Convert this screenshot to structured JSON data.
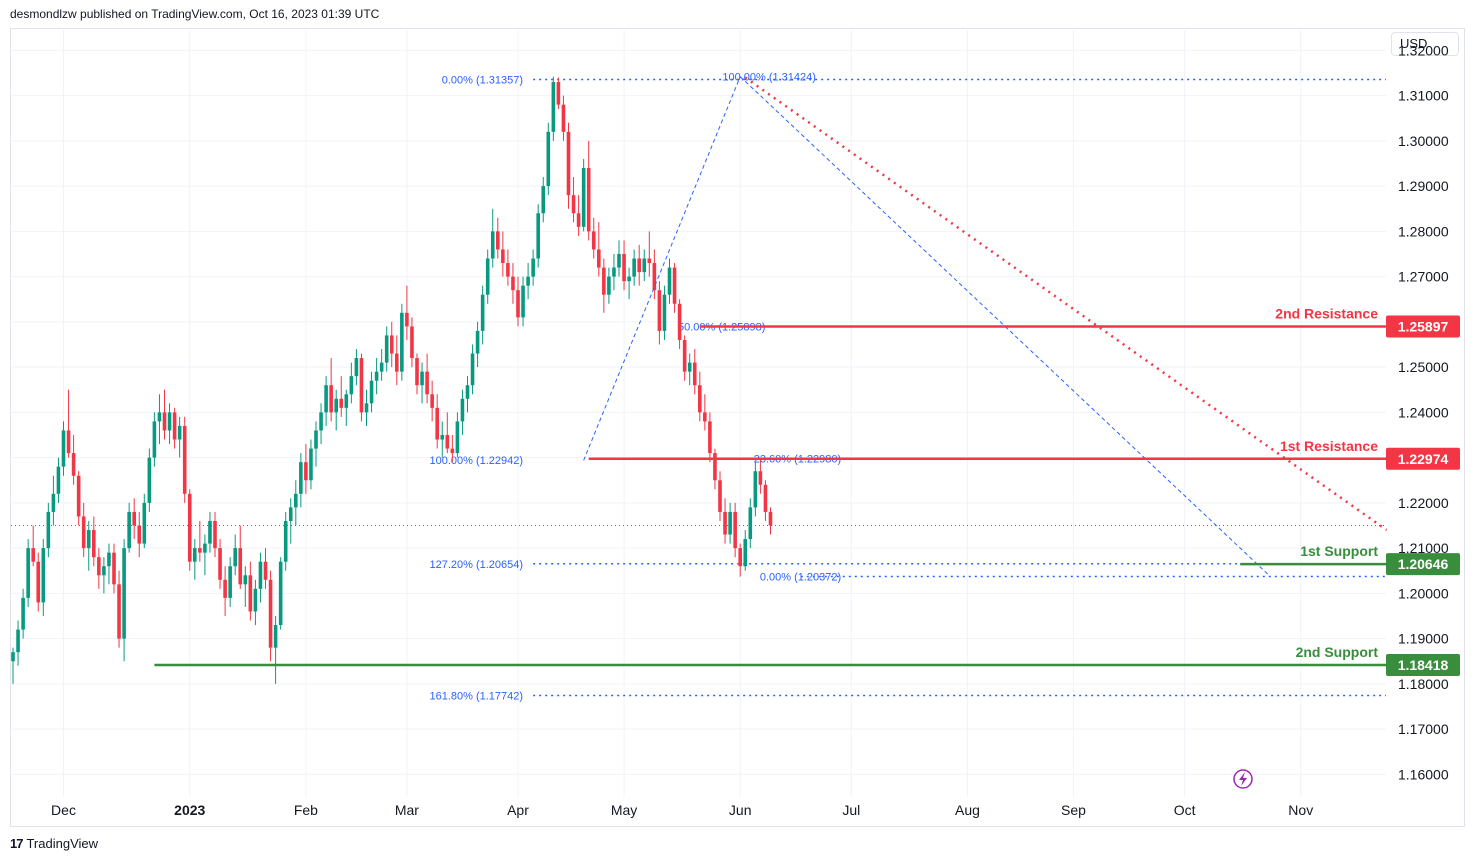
{
  "header": {
    "publisher_line": "desmondlzw published on TradingView.com, Oct 16, 2023 01:39 UTC"
  },
  "footer": {
    "brand": "TradingView",
    "logo_text": "17"
  },
  "axis": {
    "currency": "USD"
  },
  "colors": {
    "up": "#089981",
    "down": "#f23645",
    "fib": "#2962ff",
    "fib_text": "#2962ff",
    "resistance": "#f23645",
    "support": "#388e3c",
    "trend": "#f23645",
    "grid": "#f0f3fa"
  },
  "chart_data": {
    "type": "candlestick",
    "title": "",
    "ylim": [
      1.155,
      1.3245
    ],
    "y_ticks": [
      "1.32000",
      "1.31000",
      "1.30000",
      "1.29000",
      "1.28000",
      "1.27000",
      "1.26000",
      "1.25000",
      "1.24000",
      "1.23000",
      "1.22000",
      "1.21000",
      "1.20000",
      "1.19000",
      "1.18000",
      "1.17000",
      "1.16000"
    ],
    "x_ticks": [
      {
        "label": "Dec",
        "t": 10,
        "bold": false
      },
      {
        "label": "2023",
        "t": 35,
        "bold": true
      },
      {
        "label": "Feb",
        "t": 58,
        "bold": false
      },
      {
        "label": "Mar",
        "t": 78,
        "bold": false
      },
      {
        "label": "Apr",
        "t": 100,
        "bold": false
      },
      {
        "label": "May",
        "t": 121,
        "bold": false
      },
      {
        "label": "Jun",
        "t": 144,
        "bold": false
      },
      {
        "label": "Jul",
        "t": 166,
        "bold": false
      },
      {
        "label": "Aug",
        "t": 189,
        "bold": false
      },
      {
        "label": "Sep",
        "t": 210,
        "bold": false
      },
      {
        "label": "Oct",
        "t": 232,
        "bold": false
      },
      {
        "label": "Nov",
        "t": 255,
        "bold": false
      }
    ],
    "candles": [
      [
        1.185,
        1.188,
        1.18,
        1.187
      ],
      [
        1.187,
        1.194,
        1.184,
        1.192
      ],
      [
        1.192,
        1.201,
        1.19,
        1.199
      ],
      [
        1.199,
        1.212,
        1.197,
        1.21
      ],
      [
        1.21,
        1.215,
        1.206,
        1.207
      ],
      [
        1.207,
        1.209,
        1.196,
        1.198
      ],
      [
        1.198,
        1.212,
        1.195,
        1.21
      ],
      [
        1.21,
        1.22,
        1.208,
        1.218
      ],
      [
        1.218,
        1.226,
        1.215,
        1.222
      ],
      [
        1.222,
        1.23,
        1.22,
        1.228
      ],
      [
        1.228,
        1.238,
        1.226,
        1.236
      ],
      [
        1.236,
        1.245,
        1.23,
        1.231
      ],
      [
        1.231,
        1.235,
        1.224,
        1.226
      ],
      [
        1.226,
        1.227,
        1.215,
        1.217
      ],
      [
        1.217,
        1.22,
        1.208,
        1.21
      ],
      [
        1.21,
        1.216,
        1.205,
        1.214
      ],
      [
        1.214,
        1.217,
        1.206,
        1.208
      ],
      [
        1.208,
        1.21,
        1.201,
        1.204
      ],
      [
        1.204,
        1.208,
        1.2,
        1.206
      ],
      [
        1.206,
        1.211,
        1.202,
        1.209
      ],
      [
        1.209,
        1.211,
        1.2,
        1.202
      ],
      [
        1.202,
        1.205,
        1.188,
        1.19
      ],
      [
        1.19,
        1.212,
        1.185,
        1.21
      ],
      [
        1.21,
        1.22,
        1.209,
        1.218
      ],
      [
        1.218,
        1.221,
        1.212,
        1.215
      ],
      [
        1.215,
        1.218,
        1.208,
        1.211
      ],
      [
        1.211,
        1.222,
        1.21,
        1.22
      ],
      [
        1.22,
        1.232,
        1.218,
        1.23
      ],
      [
        1.23,
        1.24,
        1.228,
        1.238
      ],
      [
        1.238,
        1.244,
        1.233,
        1.24
      ],
      [
        1.24,
        1.245,
        1.234,
        1.236
      ],
      [
        1.236,
        1.242,
        1.233,
        1.24
      ],
      [
        1.24,
        1.241,
        1.232,
        1.234
      ],
      [
        1.234,
        1.239,
        1.23,
        1.237
      ],
      [
        1.237,
        1.239,
        1.22,
        1.222
      ],
      [
        1.222,
        1.223,
        1.205,
        1.207
      ],
      [
        1.207,
        1.212,
        1.203,
        1.21
      ],
      [
        1.21,
        1.216,
        1.207,
        1.209
      ],
      [
        1.209,
        1.213,
        1.204,
        1.211
      ],
      [
        1.211,
        1.218,
        1.209,
        1.216
      ],
      [
        1.216,
        1.218,
        1.208,
        1.21
      ],
      [
        1.21,
        1.212,
        1.201,
        1.203
      ],
      [
        1.203,
        1.206,
        1.195,
        1.199
      ],
      [
        1.199,
        1.208,
        1.197,
        1.206
      ],
      [
        1.206,
        1.213,
        1.204,
        1.21
      ],
      [
        1.21,
        1.215,
        1.201,
        1.202
      ],
      [
        1.202,
        1.206,
        1.197,
        1.204
      ],
      [
        1.204,
        1.207,
        1.194,
        1.196
      ],
      [
        1.196,
        1.203,
        1.193,
        1.201
      ],
      [
        1.201,
        1.209,
        1.198,
        1.207
      ],
      [
        1.207,
        1.21,
        1.201,
        1.203
      ],
      [
        1.203,
        1.205,
        1.185,
        1.188
      ],
      [
        1.188,
        1.195,
        1.18,
        1.193
      ],
      [
        1.193,
        1.208,
        1.192,
        1.207
      ],
      [
        1.207,
        1.218,
        1.205,
        1.216
      ],
      [
        1.216,
        1.221,
        1.211,
        1.219
      ],
      [
        1.219,
        1.225,
        1.215,
        1.222
      ],
      [
        1.222,
        1.231,
        1.219,
        1.229
      ],
      [
        1.229,
        1.233,
        1.222,
        1.225
      ],
      [
        1.225,
        1.234,
        1.223,
        1.232
      ],
      [
        1.232,
        1.238,
        1.228,
        1.236
      ],
      [
        1.236,
        1.242,
        1.233,
        1.24
      ],
      [
        1.24,
        1.248,
        1.237,
        1.246
      ],
      [
        1.246,
        1.252,
        1.238,
        1.24
      ],
      [
        1.24,
        1.245,
        1.236,
        1.243
      ],
      [
        1.243,
        1.248,
        1.239,
        1.241
      ],
      [
        1.241,
        1.245,
        1.237,
        1.244
      ],
      [
        1.244,
        1.251,
        1.242,
        1.248
      ],
      [
        1.248,
        1.254,
        1.246,
        1.252
      ],
      [
        1.252,
        1.253,
        1.238,
        1.24
      ],
      [
        1.24,
        1.245,
        1.237,
        1.242
      ],
      [
        1.242,
        1.249,
        1.24,
        1.247
      ],
      [
        1.247,
        1.252,
        1.244,
        1.249
      ],
      [
        1.249,
        1.254,
        1.247,
        1.251
      ],
      [
        1.251,
        1.259,
        1.249,
        1.257
      ],
      [
        1.257,
        1.26,
        1.25,
        1.253
      ],
      [
        1.253,
        1.257,
        1.246,
        1.249
      ],
      [
        1.249,
        1.264,
        1.247,
        1.262
      ],
      [
        1.262,
        1.268,
        1.256,
        1.259
      ],
      [
        1.259,
        1.261,
        1.25,
        1.252
      ],
      [
        1.252,
        1.253,
        1.244,
        1.246
      ],
      [
        1.246,
        1.251,
        1.242,
        1.249
      ],
      [
        1.249,
        1.253,
        1.242,
        1.244
      ],
      [
        1.244,
        1.247,
        1.238,
        1.241
      ],
      [
        1.241,
        1.244,
        1.232,
        1.234
      ],
      [
        1.234,
        1.238,
        1.23,
        1.235
      ],
      [
        1.235,
        1.24,
        1.231,
        1.232
      ],
      [
        1.232,
        1.235,
        1.229,
        1.231
      ],
      [
        1.231,
        1.24,
        1.23,
        1.238
      ],
      [
        1.238,
        1.245,
        1.235,
        1.243
      ],
      [
        1.243,
        1.248,
        1.24,
        1.246
      ],
      [
        1.246,
        1.255,
        1.244,
        1.253
      ],
      [
        1.253,
        1.26,
        1.25,
        1.258
      ],
      [
        1.258,
        1.268,
        1.255,
        1.266
      ],
      [
        1.266,
        1.276,
        1.264,
        1.274
      ],
      [
        1.274,
        1.285,
        1.272,
        1.28
      ],
      [
        1.28,
        1.283,
        1.274,
        1.276
      ],
      [
        1.276,
        1.28,
        1.27,
        1.273
      ],
      [
        1.273,
        1.276,
        1.268,
        1.27
      ],
      [
        1.27,
        1.273,
        1.264,
        1.267
      ],
      [
        1.267,
        1.27,
        1.259,
        1.261
      ],
      [
        1.261,
        1.27,
        1.259,
        1.268
      ],
      [
        1.268,
        1.273,
        1.265,
        1.27
      ],
      [
        1.27,
        1.276,
        1.268,
        1.274
      ],
      [
        1.274,
        1.286,
        1.272,
        1.284
      ],
      [
        1.284,
        1.292,
        1.282,
        1.29
      ],
      [
        1.29,
        1.304,
        1.288,
        1.302
      ],
      [
        1.302,
        1.3142,
        1.3,
        1.313
      ],
      [
        1.313,
        1.314,
        1.307,
        1.308
      ],
      [
        1.308,
        1.31,
        1.3,
        1.302
      ],
      [
        1.302,
        1.304,
        1.285,
        1.288
      ],
      [
        1.288,
        1.292,
        1.282,
        1.284
      ],
      [
        1.284,
        1.288,
        1.279,
        1.281
      ],
      [
        1.281,
        1.296,
        1.28,
        1.294
      ],
      [
        1.294,
        1.3,
        1.278,
        1.28
      ],
      [
        1.28,
        1.283,
        1.274,
        1.276
      ],
      [
        1.276,
        1.282,
        1.27,
        1.272
      ],
      [
        1.272,
        1.274,
        1.262,
        1.266
      ],
      [
        1.266,
        1.272,
        1.264,
        1.27
      ],
      [
        1.27,
        1.275,
        1.267,
        1.272
      ],
      [
        1.272,
        1.278,
        1.27,
        1.275
      ],
      [
        1.275,
        1.278,
        1.267,
        1.269
      ],
      [
        1.269,
        1.272,
        1.265,
        1.27
      ],
      [
        1.27,
        1.276,
        1.268,
        1.274
      ],
      [
        1.274,
        1.277,
        1.268,
        1.271
      ],
      [
        1.271,
        1.276,
        1.269,
        1.274
      ],
      [
        1.274,
        1.28,
        1.27,
        1.273
      ],
      [
        1.273,
        1.276,
        1.265,
        1.267
      ],
      [
        1.267,
        1.269,
        1.255,
        1.258
      ],
      [
        1.258,
        1.268,
        1.256,
        1.266
      ],
      [
        1.266,
        1.274,
        1.264,
        1.272
      ],
      [
        1.272,
        1.273,
        1.262,
        1.264
      ],
      [
        1.264,
        1.265,
        1.254,
        1.256
      ],
      [
        1.256,
        1.257,
        1.247,
        1.249
      ],
      [
        1.249,
        1.253,
        1.246,
        1.251
      ],
      [
        1.251,
        1.254,
        1.244,
        1.246
      ],
      [
        1.246,
        1.249,
        1.238,
        1.24
      ],
      [
        1.24,
        1.244,
        1.236,
        1.238
      ],
      [
        1.238,
        1.24,
        1.229,
        1.231
      ],
      [
        1.231,
        1.232,
        1.223,
        1.225
      ],
      [
        1.225,
        1.227,
        1.216,
        1.218
      ],
      [
        1.218,
        1.221,
        1.211,
        1.213
      ],
      [
        1.213,
        1.22,
        1.211,
        1.218
      ],
      [
        1.218,
        1.22,
        1.208,
        1.21
      ],
      [
        1.21,
        1.211,
        1.2037,
        1.206
      ],
      [
        1.206,
        1.214,
        1.205,
        1.212
      ],
      [
        1.212,
        1.221,
        1.21,
        1.219
      ],
      [
        1.219,
        1.229,
        1.217,
        1.227
      ],
      [
        1.227,
        1.23,
        1.222,
        1.224
      ],
      [
        1.224,
        1.225,
        1.216,
        1.218
      ],
      [
        1.218,
        1.219,
        1.213,
        1.215
      ]
    ],
    "fib_levels": [
      {
        "label": "0.00% (1.31357)",
        "price": 1.31357,
        "t_label": 101,
        "t_start": 103,
        "t_end": 332
      },
      {
        "label": "100.00% (1.31424)",
        "price": 1.31424,
        "t_label": 159,
        "t_start": 159,
        "t_end": 159
      },
      {
        "label": "50.00% (1.25898)",
        "price": 1.25898,
        "t_label": 149,
        "t_start": 149,
        "t_end": 149
      },
      {
        "label": "100.00% (1.22942)",
        "price": 1.22942,
        "t_label": 101,
        "t_start": 101,
        "t_end": 101
      },
      {
        "label": "23.60% (1.22980)",
        "price": 1.2298,
        "t_label": 164,
        "t_start": 164,
        "t_end": 164
      },
      {
        "label": "127.20% (1.20654)",
        "price": 1.20654,
        "t_label": 101,
        "t_start": 103,
        "t_end": 332
      },
      {
        "label": "0.00% (1.20372)",
        "price": 1.20372,
        "t_label": 164,
        "t_start": 156,
        "t_end": 332
      },
      {
        "label": "161.80% (1.17742)",
        "price": 1.17742,
        "t_label": 101,
        "t_start": 103,
        "t_end": 332
      }
    ],
    "levels": [
      {
        "name": "2nd Resistance",
        "price_label": "1.25897",
        "price": 1.25897,
        "kind": "resistance",
        "t_start": 136
      },
      {
        "name": "1st Resistance",
        "price_label": "1.22974",
        "price": 1.22974,
        "kind": "resistance",
        "t_start": 114
      },
      {
        "name": "1st Support",
        "price_label": "1.20646",
        "price": 1.20646,
        "kind": "support",
        "t_start": 243
      },
      {
        "name": "2nd Support",
        "price_label": "1.18418",
        "price": 1.18418,
        "kind": "support",
        "t_start": 28
      }
    ],
    "current_price": 1.215,
    "trendline": {
      "t1": 145,
      "p1": 1.314,
      "t2": 272,
      "p2": 1.214
    },
    "channel_lines": [
      {
        "t1": 113,
        "p1": 1.2294,
        "t2": 144,
        "p2": 1.3142
      },
      {
        "t1": 144,
        "p1": 1.3142,
        "t2": 249,
        "p2": 1.2037
      }
    ]
  }
}
